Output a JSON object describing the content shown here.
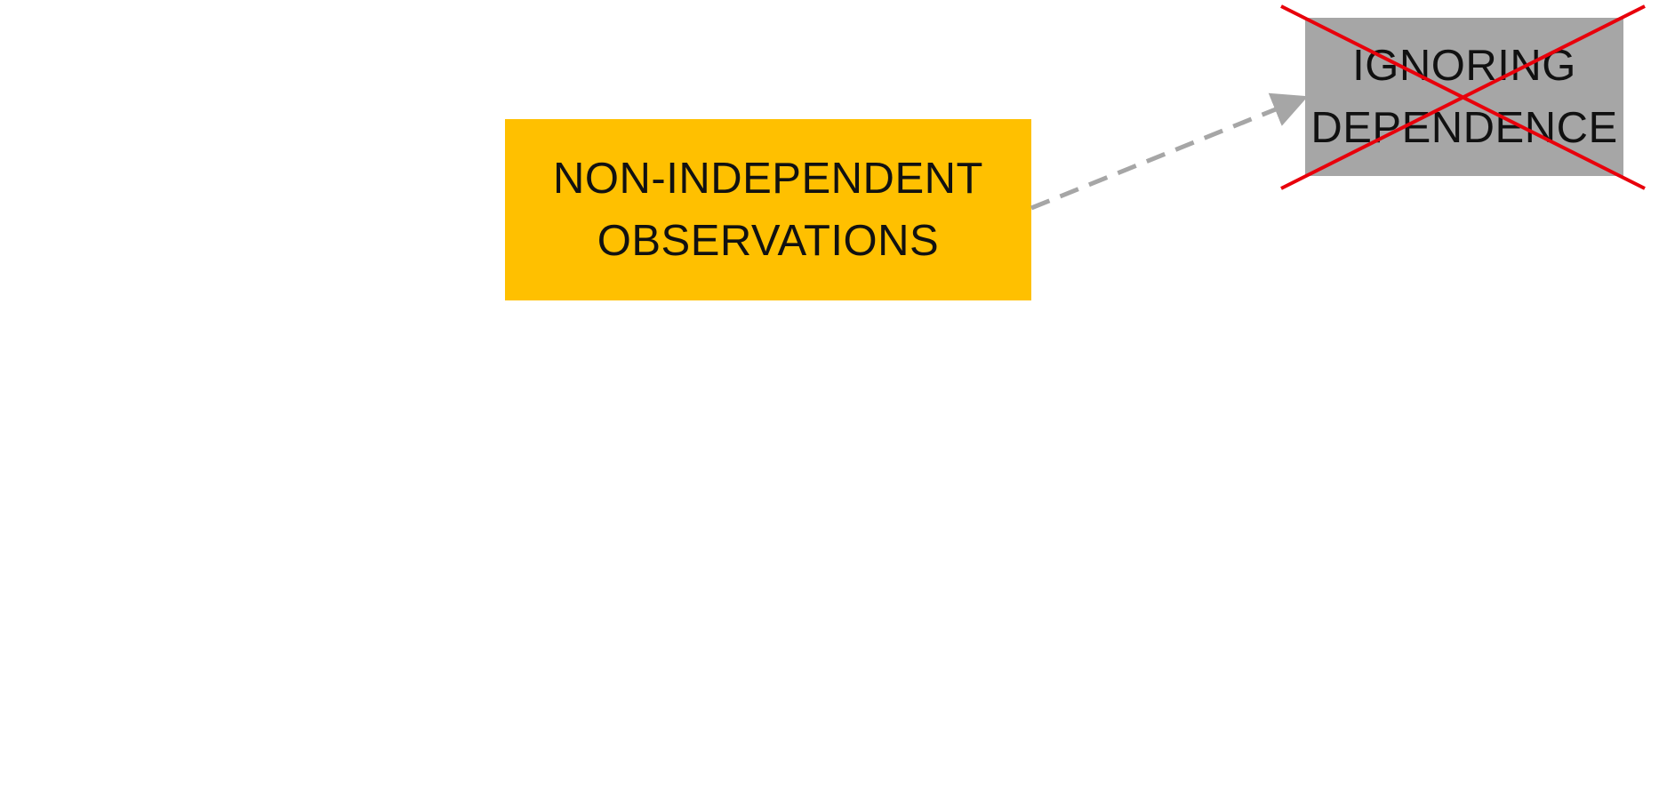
{
  "colors": {
    "main_box": "#FFC000",
    "ignored_box": "#A6A6A6",
    "connector": "#A6A6A6",
    "cross": "#E8000B"
  },
  "nodes": {
    "main": {
      "line1": "NON-INDEPENDENT",
      "line2": "OBSERVATIONS"
    },
    "ignored": {
      "line1": "IGNORING",
      "line2": "DEPENDENCE",
      "crossed_out": true
    }
  },
  "edges": [
    {
      "from": "main",
      "to": "ignored",
      "style": "dashed",
      "arrow": true
    }
  ]
}
